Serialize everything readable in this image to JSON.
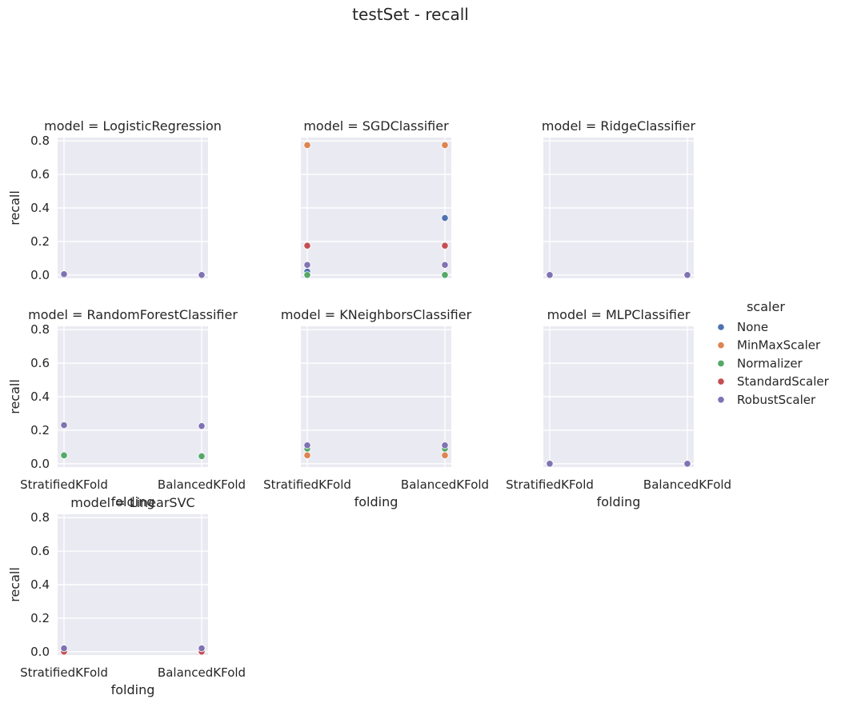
{
  "title": "testSet - recall",
  "legend": {
    "title": "scaler",
    "entries": [
      {
        "name": "None",
        "color": "#4c72b0"
      },
      {
        "name": "MinMaxScaler",
        "color": "#dd8452"
      },
      {
        "name": "Normalizer",
        "color": "#55a868"
      },
      {
        "name": "StandardScaler",
        "color": "#c44e52"
      },
      {
        "name": "RobustScaler",
        "color": "#8172b3"
      }
    ],
    "placement": "center-right"
  },
  "chart_data": {
    "type": "scatter",
    "xlabel": "folding",
    "ylabel": "recall",
    "categories": [
      "StratifiedKFold",
      "BalancedKFold"
    ],
    "yticks": [
      0.0,
      0.2,
      0.4,
      0.6,
      0.8
    ],
    "ytick_labels": [
      "0.0",
      "0.2",
      "0.4",
      "0.6",
      "0.8"
    ],
    "ylim": [
      -0.02,
      0.82
    ],
    "grid": true,
    "panels": [
      {
        "title": "model = LogisticRegression",
        "points": [
          {
            "scaler": "None",
            "x": "StratifiedKFold",
            "y": 0.005
          },
          {
            "scaler": "RobustScaler",
            "x": "StratifiedKFold",
            "y": 0.005
          },
          {
            "scaler": "None",
            "x": "BalancedKFold",
            "y": 0.0
          },
          {
            "scaler": "RobustScaler",
            "x": "BalancedKFold",
            "y": 0.0
          }
        ]
      },
      {
        "title": "model = SGDClassifier",
        "points": [
          {
            "scaler": "MinMaxScaler",
            "x": "StratifiedKFold",
            "y": 0.775
          },
          {
            "scaler": "StandardScaler",
            "x": "StratifiedKFold",
            "y": 0.175
          },
          {
            "scaler": "RobustScaler",
            "x": "StratifiedKFold",
            "y": 0.06
          },
          {
            "scaler": "None",
            "x": "StratifiedKFold",
            "y": 0.02
          },
          {
            "scaler": "Normalizer",
            "x": "StratifiedKFold",
            "y": 0.0
          },
          {
            "scaler": "MinMaxScaler",
            "x": "BalancedKFold",
            "y": 0.775
          },
          {
            "scaler": "None",
            "x": "BalancedKFold",
            "y": 0.34
          },
          {
            "scaler": "StandardScaler",
            "x": "BalancedKFold",
            "y": 0.175
          },
          {
            "scaler": "RobustScaler",
            "x": "BalancedKFold",
            "y": 0.06
          },
          {
            "scaler": "Normalizer",
            "x": "BalancedKFold",
            "y": 0.0
          }
        ]
      },
      {
        "title": "model = RidgeClassifier",
        "points": [
          {
            "scaler": "RobustScaler",
            "x": "StratifiedKFold",
            "y": 0.0
          },
          {
            "scaler": "RobustScaler",
            "x": "BalancedKFold",
            "y": 0.0
          }
        ]
      },
      {
        "title": "model = RandomForestClassifier",
        "points": [
          {
            "scaler": "RobustScaler",
            "x": "StratifiedKFold",
            "y": 0.23
          },
          {
            "scaler": "Normalizer",
            "x": "StratifiedKFold",
            "y": 0.05
          },
          {
            "scaler": "RobustScaler",
            "x": "BalancedKFold",
            "y": 0.225
          },
          {
            "scaler": "Normalizer",
            "x": "BalancedKFold",
            "y": 0.045
          }
        ]
      },
      {
        "title": "model = KNeighborsClassifier",
        "points": [
          {
            "scaler": "Normalizer",
            "x": "StratifiedKFold",
            "y": 0.09
          },
          {
            "scaler": "RobustScaler",
            "x": "StratifiedKFold",
            "y": 0.11
          },
          {
            "scaler": "MinMaxScaler",
            "x": "StratifiedKFold",
            "y": 0.05
          },
          {
            "scaler": "Normalizer",
            "x": "BalancedKFold",
            "y": 0.09
          },
          {
            "scaler": "RobustScaler",
            "x": "BalancedKFold",
            "y": 0.11
          },
          {
            "scaler": "MinMaxScaler",
            "x": "BalancedKFold",
            "y": 0.05
          }
        ]
      },
      {
        "title": "model = MLPClassifier",
        "points": [
          {
            "scaler": "RobustScaler",
            "x": "StratifiedKFold",
            "y": 0.0
          },
          {
            "scaler": "RobustScaler",
            "x": "BalancedKFold",
            "y": 0.0
          }
        ]
      },
      {
        "title": "model = LinearSVC",
        "points": [
          {
            "scaler": "StandardScaler",
            "x": "StratifiedKFold",
            "y": 0.0
          },
          {
            "scaler": "RobustScaler",
            "x": "StratifiedKFold",
            "y": 0.02
          },
          {
            "scaler": "StandardScaler",
            "x": "BalancedKFold",
            "y": 0.0
          },
          {
            "scaler": "RobustScaler",
            "x": "BalancedKFold",
            "y": 0.02
          }
        ]
      }
    ]
  }
}
